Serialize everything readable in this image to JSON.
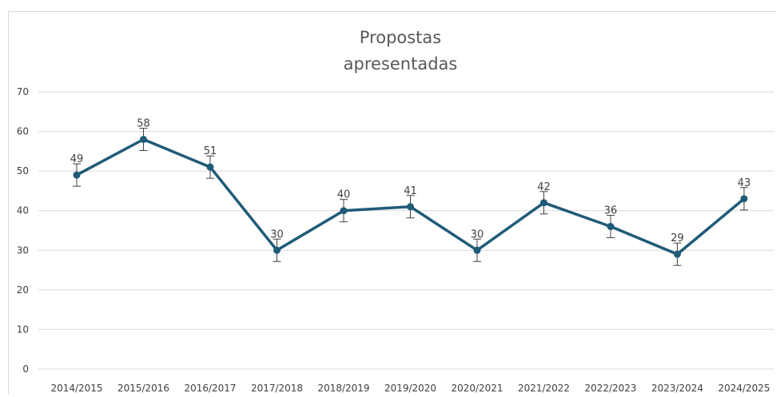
{
  "chart_data": {
    "type": "line",
    "title": "Propostas apresentadas",
    "title_lines": [
      "Propostas",
      "apresentadas"
    ],
    "xlabel": "",
    "ylabel": "",
    "categories": [
      "2014/2015",
      "2015/2016",
      "2016/2017",
      "2017/2018",
      "2018/2019",
      "2019/2020",
      "2020/2021",
      "2021/2022",
      "2022/2023",
      "2023/2024",
      "2024/2025"
    ],
    "values": [
      49,
      58,
      51,
      30,
      40,
      41,
      30,
      42,
      36,
      29,
      43
    ],
    "y_ticks": [
      "0",
      "10",
      "20",
      "30",
      "40",
      "50",
      "60",
      "70"
    ],
    "ylim": [
      0,
      70
    ],
    "error_bars": true,
    "grid": true,
    "legend": "none",
    "series_color": "#1f5b78",
    "grid_color": "#d9d9d9"
  }
}
